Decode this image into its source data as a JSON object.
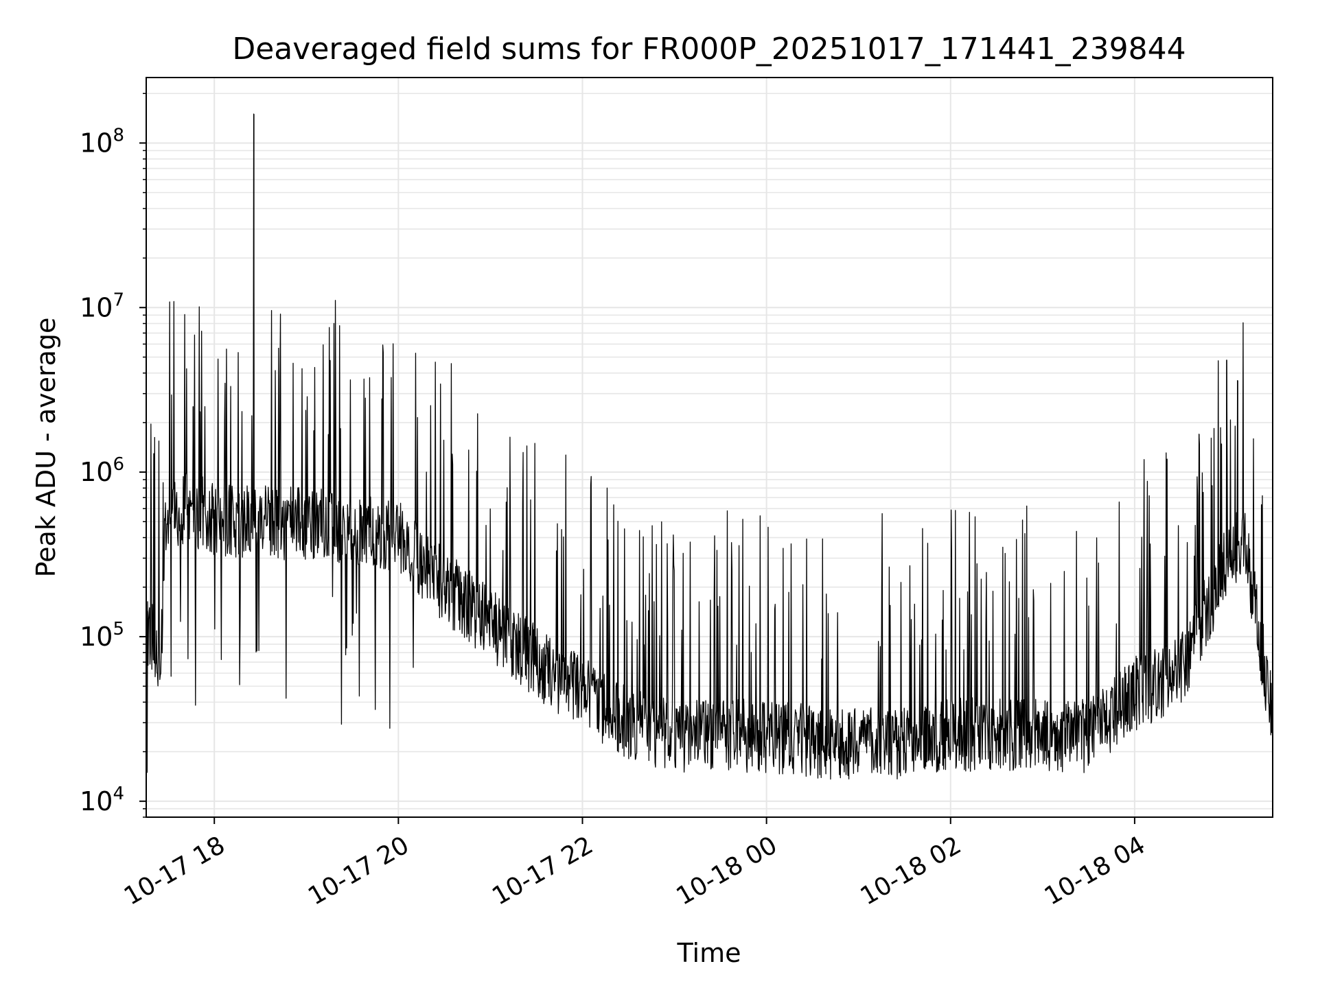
{
  "chart_data": {
    "type": "line",
    "title": "Deaveraged field sums for FR000P_20251017_171441_239844",
    "xlabel": "Time",
    "ylabel": "Peak ADU - average",
    "yscale": "log",
    "ylim": [
      8000,
      250000000
    ],
    "xlim_hours": [
      -0.74,
      11.5
    ],
    "grid": true,
    "line_color": "#000000",
    "grid_color": "#e6e6e6",
    "x_ticks": [
      {
        "label": "10-17 18",
        "hours": 0
      },
      {
        "label": "10-17 20",
        "hours": 2
      },
      {
        "label": "10-17 22",
        "hours": 4
      },
      {
        "label": "10-18 00",
        "hours": 6
      },
      {
        "label": "10-18 02",
        "hours": 8
      },
      {
        "label": "10-18 04",
        "hours": 10
      }
    ],
    "y_ticks": [
      {
        "base": "10",
        "exp": "4",
        "value": 10000
      },
      {
        "base": "10",
        "exp": "5",
        "value": 100000
      },
      {
        "base": "10",
        "exp": "6",
        "value": 1000000
      },
      {
        "base": "10",
        "exp": "7",
        "value": 10000000
      },
      {
        "base": "10",
        "exp": "8",
        "value": 100000000
      }
    ],
    "series": [
      {
        "name": "Peak ADU - average",
        "baseline_hours": [
          -0.74,
          -0.65,
          -0.58,
          -0.55,
          -0.5,
          -0.4,
          -0.3,
          -0.2,
          0.0,
          0.5,
          1.0,
          1.5,
          2.0,
          2.5,
          3.0,
          3.5,
          4.0,
          4.5,
          5.0,
          5.5,
          6.0,
          6.5,
          7.0,
          7.5,
          8.0,
          8.5,
          9.0,
          9.5,
          10.0,
          10.5,
          10.8,
          11.0,
          11.2,
          11.35,
          11.5
        ],
        "baseline_values": [
          120000,
          90000,
          60000,
          300000,
          600000,
          550000,
          600000,
          580000,
          520000,
          500000,
          480000,
          450000,
          420000,
          200000,
          120000,
          70000,
          45000,
          30000,
          25000,
          25000,
          25000,
          23000,
          22000,
          23000,
          25000,
          26000,
          25000,
          25000,
          45000,
          60000,
          150000,
          300000,
          400000,
          100000,
          35000
        ],
        "spikes": [
          {
            "hours": -0.23,
            "value": 2500000
          },
          {
            "hours": 0.43,
            "value": 150000000
          },
          {
            "hours": 11.0,
            "value": 4800000
          },
          {
            "hours": 11.12,
            "value": 3600000
          },
          {
            "hours": 10.7,
            "value": 1700000
          },
          {
            "hours": 10.35,
            "value": 1200000
          }
        ]
      }
    ]
  }
}
